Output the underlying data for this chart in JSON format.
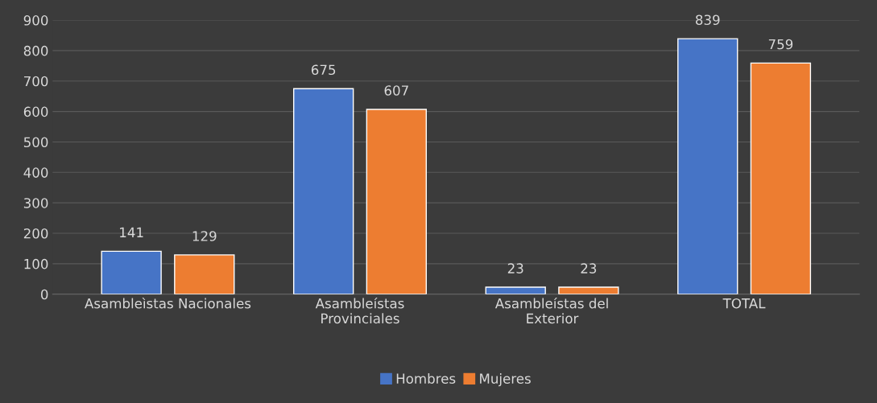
{
  "chart_data": {
    "type": "bar",
    "categories": [
      "Asambleìstas Nacionales",
      "Asambleístas\nProvinciales",
      "Asambleístas del\nExterior",
      "TOTAL"
    ],
    "series": [
      {
        "name": "Hombres",
        "color": "#4674c6",
        "values": [
          141,
          675,
          23,
          839
        ]
      },
      {
        "name": "Mujeres",
        "color": "#ed7d31",
        "values": [
          129,
          607,
          23,
          759
        ]
      }
    ],
    "ylim": [
      0,
      900
    ],
    "yticks": [
      0,
      100,
      200,
      300,
      400,
      500,
      600,
      700,
      800,
      900
    ],
    "grid": "y",
    "legend": "bottom",
    "data_labels": true
  }
}
